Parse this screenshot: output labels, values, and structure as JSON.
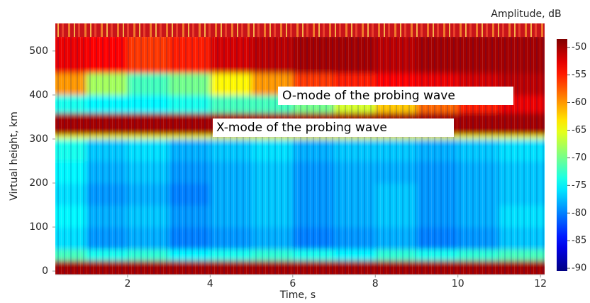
{
  "chart_data": {
    "type": "heatmap",
    "xlabel": "Time, s",
    "ylabel": "Virtual height, km",
    "colorbar_label": "Amplitude, dB",
    "annotations": [
      "O-mode of the probing wave",
      "X-mode of the probing wave"
    ],
    "xlim": [
      0.25,
      12.1
    ],
    "ylim": [
      -8,
      532
    ],
    "xticks": [
      2,
      4,
      6,
      8,
      10,
      12
    ],
    "yticks": [
      0,
      100,
      200,
      300,
      400,
      500
    ],
    "clim": [
      -90.5,
      -48.5
    ],
    "cticks": [
      -50,
      -55,
      -60,
      -65,
      -70,
      -75,
      -80,
      -85,
      -90
    ],
    "colormap": "jet",
    "xbins": [
      0.25,
      1,
      2,
      3,
      4,
      5,
      6,
      7,
      8,
      9,
      10,
      11,
      12.1
    ],
    "ybins": [
      -8,
      25,
      50,
      100,
      150,
      200,
      250,
      300,
      310,
      360,
      400,
      450,
      532
    ],
    "z": [
      [
        -50,
        -50,
        -50,
        -50,
        -50,
        -50,
        -50,
        -50,
        -50,
        -50,
        -50,
        -50
      ],
      [
        -72,
        -74,
        -73,
        -75,
        -74,
        -73,
        -74,
        -75,
        -73,
        -74,
        -73,
        -72
      ],
      [
        -76,
        -79,
        -78,
        -80,
        -79,
        -78,
        -80,
        -79,
        -78,
        -80,
        -79,
        -77
      ],
      [
        -75,
        -78,
        -77,
        -79,
        -78,
        -77,
        -79,
        -78,
        -77,
        -79,
        -78,
        -76
      ],
      [
        -76,
        -79,
        -78,
        -80,
        -78,
        -77,
        -79,
        -78,
        -77,
        -79,
        -78,
        -77
      ],
      [
        -75,
        -78,
        -77,
        -79,
        -78,
        -77,
        -79,
        -78,
        -78,
        -79,
        -78,
        -77
      ],
      [
        -74,
        -77,
        -76,
        -78,
        -77,
        -76,
        -78,
        -77,
        -77,
        -78,
        -77,
        -76
      ],
      [
        -65,
        -65,
        -65,
        -65,
        -65,
        -65,
        -65,
        -65,
        -65,
        -65,
        -65,
        -65
      ],
      [
        -50,
        -50,
        -50,
        -50,
        -50,
        -50,
        -50,
        -50,
        -50,
        -50,
        -50,
        -50
      ],
      [
        -74,
        -75,
        -75,
        -74,
        -72,
        -72,
        -70,
        -66,
        -62,
        -58,
        -55,
        -53
      ],
      [
        -60,
        -68,
        -72,
        -70,
        -64,
        -60,
        -56,
        -55,
        -54,
        -53,
        -52,
        -51
      ],
      [
        -53,
        -54,
        -56,
        -55,
        -52,
        -51,
        -50,
        -50,
        -51,
        -50,
        -50,
        -50
      ]
    ]
  }
}
